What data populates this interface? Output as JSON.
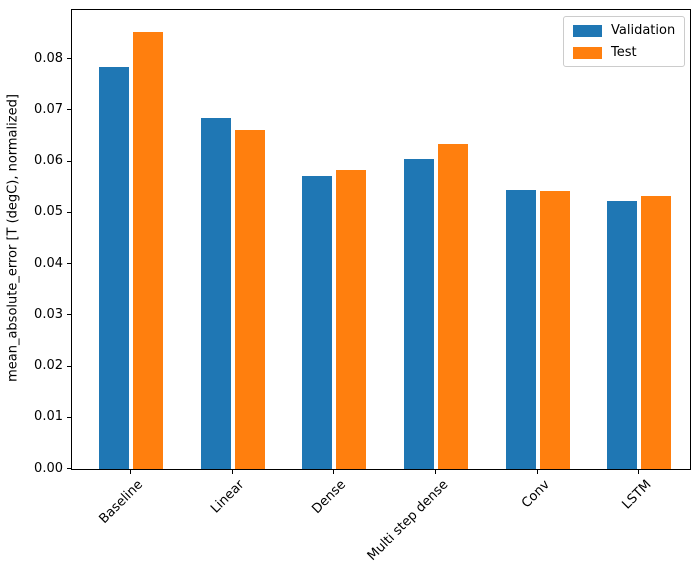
{
  "chart_data": {
    "type": "bar",
    "title": "",
    "xlabel": "",
    "ylabel": "mean_absolute_error [T (degC), normalized]",
    "categories": [
      "Baseline",
      "Linear",
      "Dense",
      "Multi step dense",
      "Conv",
      "LSTM"
    ],
    "series": [
      {
        "name": "Validation",
        "color": "#1f77b4",
        "values": [
          0.0785,
          0.0686,
          0.0572,
          0.0606,
          0.0544,
          0.0523
        ]
      },
      {
        "name": "Test",
        "color": "#ff7f0e",
        "values": [
          0.0853,
          0.0662,
          0.0583,
          0.0634,
          0.0542,
          0.0533
        ]
      }
    ],
    "ylim": [
      0,
      0.0896
    ],
    "yticks": [
      "0.00",
      "0.01",
      "0.02",
      "0.03",
      "0.04",
      "0.05",
      "0.06",
      "0.07",
      "0.08"
    ],
    "ytick_step": 0.01,
    "grid": false,
    "legend": {
      "position": "upper right",
      "entries": [
        "Validation",
        "Test"
      ]
    },
    "xtick_rotation_deg": 45
  }
}
